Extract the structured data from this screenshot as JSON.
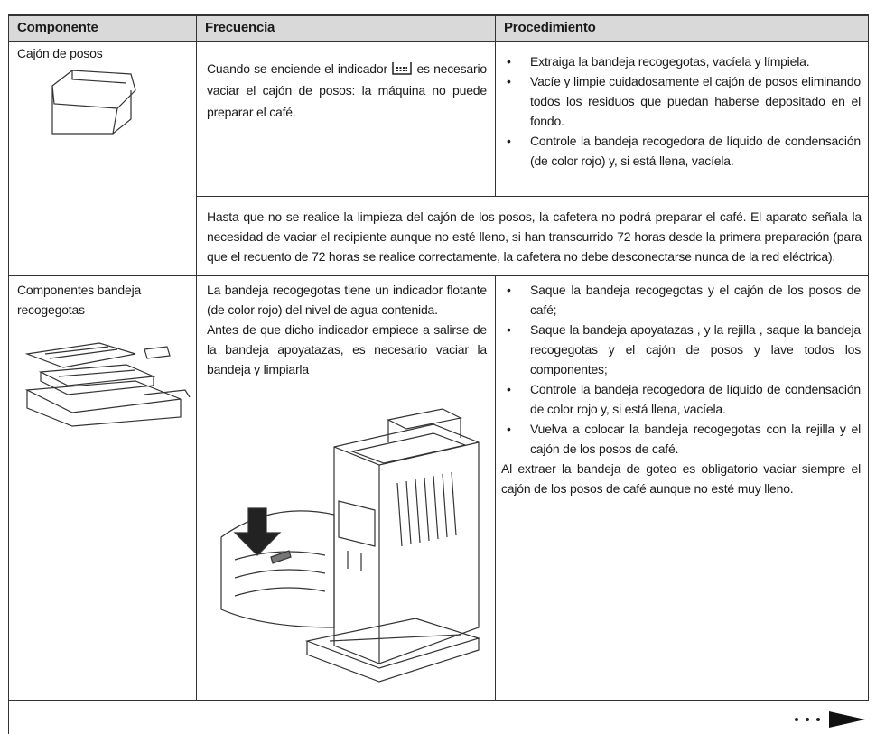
{
  "table": {
    "header": [
      "Componente",
      "Frecuencia",
      "Procedimiento"
    ],
    "rows": [
      {
        "component": "Cajón de posos",
        "frequency": {
          "before": "Cuando se enciende el indicador",
          "after": "es necesario vaciar el cajón de posos: la máquina no puede preparar el café."
        },
        "procedure": [
          "Extraiga la bandeja recogegotas, vacíela y límpiela.",
          "Vacíe y limpie cuidadosamente el cajón de posos eliminando todos los residuos que puedan haberse depositado en el fondo.",
          "Controle la bandeja recogedora de líquido de condensación (de color rojo) y, si está llena, vacíela."
        ],
        "note": "Hasta que no se realice la limpieza del cajón de los posos, la cafetera no podrá preparar el café. El aparato señala la necesidad de vaciar el recipiente aunque no esté lleno, si han transcurrido 72 horas desde la primera preparación (para que el recuento de 72 horas se realice correctamente, la cafetera no debe desconectarse nunca de la red eléctrica)."
      },
      {
        "component": "Componentes bandeja recogegotas",
        "frequency": [
          "La bandeja recogegotas tiene un indicador flotante (de color rojo) del nivel de agua contenida.",
          "Antes de que dicho indicador empiece a salirse de la bandeja apoyatazas, es necesario vaciar la bandeja y limpiarla"
        ],
        "procedure": [
          "Saque la bandeja recogegotas y el cajón de los posos de café;",
          "Saque la bandeja apoyatazas , y la rejilla , saque la bandeja recogegotas y el cajón de posos y lave todos los componentes;",
          "Controle la bandeja recogedora de líquido de condensación de color rojo y, si está llena, vacíela.",
          "Vuelva a colocar la bandeja recogegotas con la rejilla y el cajón de los posos de café."
        ],
        "closing": "Al extraer la bandeja de goteo es obligatorio vaciar siempre el cajón de los posos de café aunque no esté muy lleno."
      }
    ]
  }
}
